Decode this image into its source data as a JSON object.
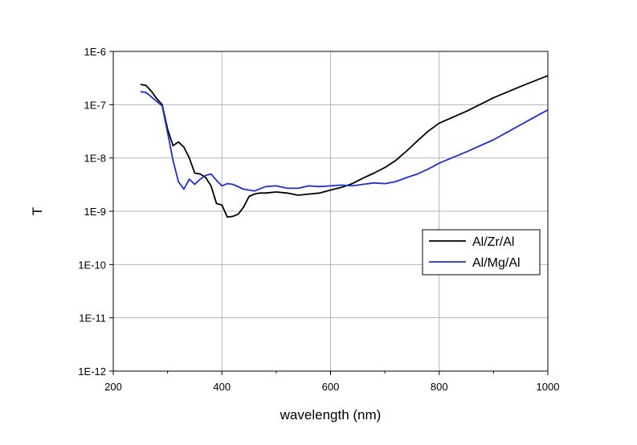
{
  "chart_data": {
    "type": "line",
    "xlabel": "wavelength (nm)",
    "ylabel": "T",
    "xlim": [
      200,
      1000
    ],
    "ylim": [
      1e-12,
      1e-06
    ],
    "yscale": "log",
    "grid": true,
    "legend_position": "right",
    "x_ticks": [
      200,
      400,
      600,
      800,
      1000
    ],
    "x_tick_labels": [
      "200",
      "400",
      "600",
      "800",
      "1000"
    ],
    "y_ticks": [
      1e-12,
      1e-11,
      1e-10,
      1e-09,
      1e-08,
      1e-07,
      1e-06
    ],
    "y_tick_labels": [
      "1E-12",
      "1E-11",
      "1E-10",
      "1E-9",
      "1E-8",
      "1E-7",
      "1E-6"
    ],
    "series": [
      {
        "name": "Al/Zr/Al",
        "color": "#000000",
        "points": [
          [
            250,
            2.4e-07
          ],
          [
            260,
            2.3e-07
          ],
          [
            270,
            1.8e-07
          ],
          [
            280,
            1.3e-07
          ],
          [
            290,
            1e-07
          ],
          [
            300,
            3.5e-08
          ],
          [
            310,
            1.7e-08
          ],
          [
            320,
            2e-08
          ],
          [
            330,
            1.6e-08
          ],
          [
            340,
            1e-08
          ],
          [
            350,
            5.2e-09
          ],
          [
            360,
            5e-09
          ],
          [
            370,
            4.3e-09
          ],
          [
            380,
            3e-09
          ],
          [
            390,
            1.4e-09
          ],
          [
            400,
            1.3e-09
          ],
          [
            410,
            7.8e-10
          ],
          [
            420,
            8e-10
          ],
          [
            430,
            8.8e-10
          ],
          [
            440,
            1.2e-09
          ],
          [
            450,
            1.9e-09
          ],
          [
            460,
            2.1e-09
          ],
          [
            470,
            2.2e-09
          ],
          [
            480,
            2.2e-09
          ],
          [
            500,
            2.3e-09
          ],
          [
            520,
            2.2e-09
          ],
          [
            540,
            2e-09
          ],
          [
            560,
            2.1e-09
          ],
          [
            580,
            2.2e-09
          ],
          [
            600,
            2.5e-09
          ],
          [
            620,
            2.8e-09
          ],
          [
            640,
            3.3e-09
          ],
          [
            660,
            4.2e-09
          ],
          [
            680,
            5.2e-09
          ],
          [
            700,
            6.6e-09
          ],
          [
            720,
            9e-09
          ],
          [
            740,
            1.35e-08
          ],
          [
            760,
            2.1e-08
          ],
          [
            780,
            3.2e-08
          ],
          [
            800,
            4.5e-08
          ],
          [
            850,
            7.5e-08
          ],
          [
            900,
            1.35e-07
          ],
          [
            950,
            2.2e-07
          ],
          [
            1000,
            3.5e-07
          ]
        ]
      },
      {
        "name": "Al/Mg/Al",
        "color": "#1f2ecf",
        "points": [
          [
            250,
            1.75e-07
          ],
          [
            260,
            1.7e-07
          ],
          [
            270,
            1.4e-07
          ],
          [
            280,
            1.15e-07
          ],
          [
            290,
            9.5e-08
          ],
          [
            300,
            3e-08
          ],
          [
            310,
            9e-09
          ],
          [
            320,
            3.6e-09
          ],
          [
            330,
            2.6e-09
          ],
          [
            340,
            4e-09
          ],
          [
            350,
            3.2e-09
          ],
          [
            360,
            4e-09
          ],
          [
            370,
            4.7e-09
          ],
          [
            380,
            5e-09
          ],
          [
            390,
            3.8e-09
          ],
          [
            400,
            3e-09
          ],
          [
            410,
            3.3e-09
          ],
          [
            420,
            3.2e-09
          ],
          [
            440,
            2.6e-09
          ],
          [
            460,
            2.4e-09
          ],
          [
            480,
            2.9e-09
          ],
          [
            500,
            3e-09
          ],
          [
            520,
            2.7e-09
          ],
          [
            540,
            2.7e-09
          ],
          [
            560,
            3e-09
          ],
          [
            580,
            2.9e-09
          ],
          [
            600,
            3e-09
          ],
          [
            620,
            3.1e-09
          ],
          [
            640,
            3e-09
          ],
          [
            660,
            3.2e-09
          ],
          [
            680,
            3.4e-09
          ],
          [
            700,
            3.3e-09
          ],
          [
            720,
            3.6e-09
          ],
          [
            740,
            4.3e-09
          ],
          [
            760,
            5e-09
          ],
          [
            780,
            6.2e-09
          ],
          [
            800,
            8e-09
          ],
          [
            850,
            1.3e-08
          ],
          [
            900,
            2.2e-08
          ],
          [
            950,
            4.2e-08
          ],
          [
            1000,
            8e-08
          ]
        ]
      }
    ]
  }
}
